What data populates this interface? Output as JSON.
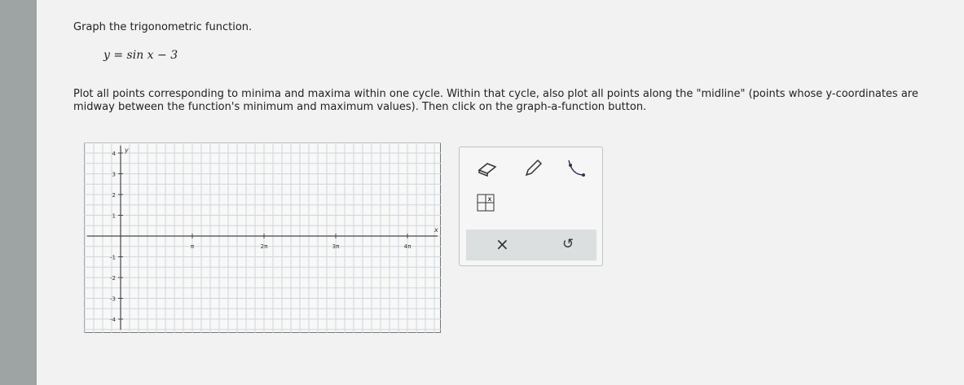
{
  "question": {
    "title": "Graph the trigonometric function.",
    "equation": "y = sin x − 3",
    "instructions": "Plot all points corresponding to minima and maxima within one cycle. Within that cycle, also plot all points along the \"midline\" (points whose y-coordinates are midway between the function's minimum and maximum values). Then click on the graph-a-function button."
  },
  "graph": {
    "x_axis_label": "x",
    "y_axis_label": "y",
    "x_tick_labels": [
      "π",
      "2π",
      "3π",
      "4π"
    ],
    "y_tick_labels": [
      "4",
      "3",
      "2",
      "1",
      "-1",
      "-2",
      "-3",
      "-4"
    ]
  },
  "tools": {
    "clear": "×",
    "undo": "↺"
  }
}
